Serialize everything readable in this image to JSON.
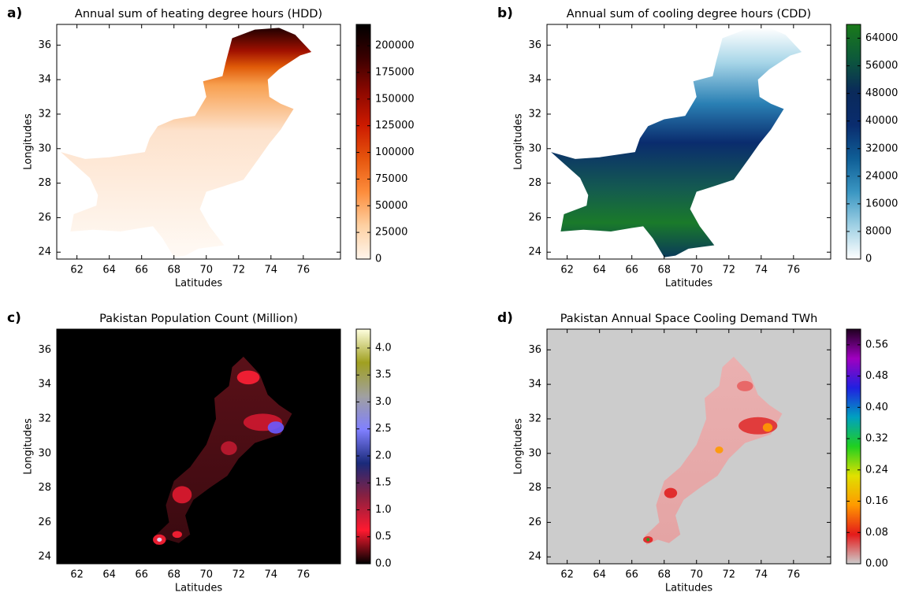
{
  "chart_data": [
    {
      "type": "heatmap",
      "panel_label": "a)",
      "title": "Annual sum of heating degree hours (HDD)",
      "xlabel": "Latitudes",
      "ylabel": "Longitudes",
      "xlim": [
        60.75,
        78.3
      ],
      "ylim": [
        23.6,
        37.2
      ],
      "xticks": [
        62,
        64,
        66,
        68,
        70,
        72,
        74,
        76
      ],
      "yticks": [
        24,
        26,
        28,
        30,
        32,
        34,
        36
      ],
      "facecolor": "#ffffff",
      "colorbar": {
        "lim": [
          0,
          220000
        ],
        "ticks": [
          0,
          25000,
          50000,
          75000,
          100000,
          125000,
          150000,
          175000,
          200000
        ],
        "colors": [
          "#fff5eb",
          "#fdd0a2",
          "#fd8d3c",
          "#e6550d",
          "#cc1a00",
          "#8c0800",
          "#3a0000",
          "#000000"
        ]
      }
    },
    {
      "type": "heatmap",
      "panel_label": "b)",
      "title": "Annual sum of cooling degree hours (CDD)",
      "xlabel": "Latitudes",
      "ylabel": "Longitudes",
      "xlim": [
        60.75,
        78.3
      ],
      "ylim": [
        23.6,
        37.2
      ],
      "xticks": [
        62,
        64,
        66,
        68,
        70,
        72,
        74,
        76
      ],
      "yticks": [
        24,
        26,
        28,
        30,
        32,
        34,
        36
      ],
      "facecolor": "#ffffff",
      "colorbar": {
        "lim": [
          0,
          68000
        ],
        "ticks": [
          0,
          8000,
          16000,
          24000,
          32000,
          40000,
          48000,
          56000,
          64000
        ],
        "colors": [
          "#ffffff",
          "#9fd0e4",
          "#3a96c2",
          "#0f5e96",
          "#0a2c6e",
          "#0a2a5a",
          "#0d5a3a",
          "#1a7a1a"
        ]
      }
    },
    {
      "type": "heatmap",
      "panel_label": "c)",
      "title": "Pakistan Population Count (Million)",
      "xlabel": "Latitudes",
      "ylabel": "Longitudes",
      "xlim": [
        60.75,
        78.3
      ],
      "ylim": [
        23.6,
        37.2
      ],
      "xticks": [
        62,
        64,
        66,
        68,
        70,
        72,
        74,
        76
      ],
      "yticks": [
        24,
        26,
        28,
        30,
        32,
        34,
        36
      ],
      "facecolor": "#000000",
      "colorbar": {
        "lim": [
          0,
          4.35
        ],
        "ticks": [
          {
            "value": 0,
            "label": "0.0"
          },
          0.5,
          {
            "value": 1,
            "label": "1.0"
          },
          1.5,
          {
            "value": 2,
            "label": "2.0"
          },
          2.5,
          {
            "value": 3,
            "label": "3.0"
          },
          3.5,
          {
            "value": 4,
            "label": "4.0"
          }
        ],
        "colors": [
          "#000000",
          "#ff1a30",
          "#8a2040",
          "#1a2a7a",
          "#8080ff",
          "#a0a0a0",
          "#a0a020",
          "#ffffe0"
        ]
      }
    },
    {
      "type": "heatmap",
      "panel_label": "d)",
      "title": "Pakistan Annual Space Cooling Demand TWh",
      "xlabel": "Latitudes",
      "ylabel": "Longitudes",
      "xlim": [
        60.75,
        78.3
      ],
      "ylim": [
        23.6,
        37.2
      ],
      "xticks": [
        62,
        64,
        66,
        68,
        70,
        72,
        74,
        76
      ],
      "yticks": [
        24,
        26,
        28,
        30,
        32,
        34,
        36
      ],
      "facecolor": "#cccccc",
      "colorbar": {
        "lim": [
          0,
          0.6
        ],
        "ticks": [
          {
            "value": 0,
            "label": "0.00"
          },
          0.08,
          0.16,
          0.24,
          0.32,
          {
            "value": 0.4,
            "label": "0.40"
          },
          0.48,
          0.56
        ],
        "colors": [
          "#cccccc",
          "#e41a1a",
          "#ff9900",
          "#e0e000",
          "#20d020",
          "#00a0c0",
          "#2020e0",
          "#a000c0",
          "#200020"
        ]
      }
    }
  ]
}
